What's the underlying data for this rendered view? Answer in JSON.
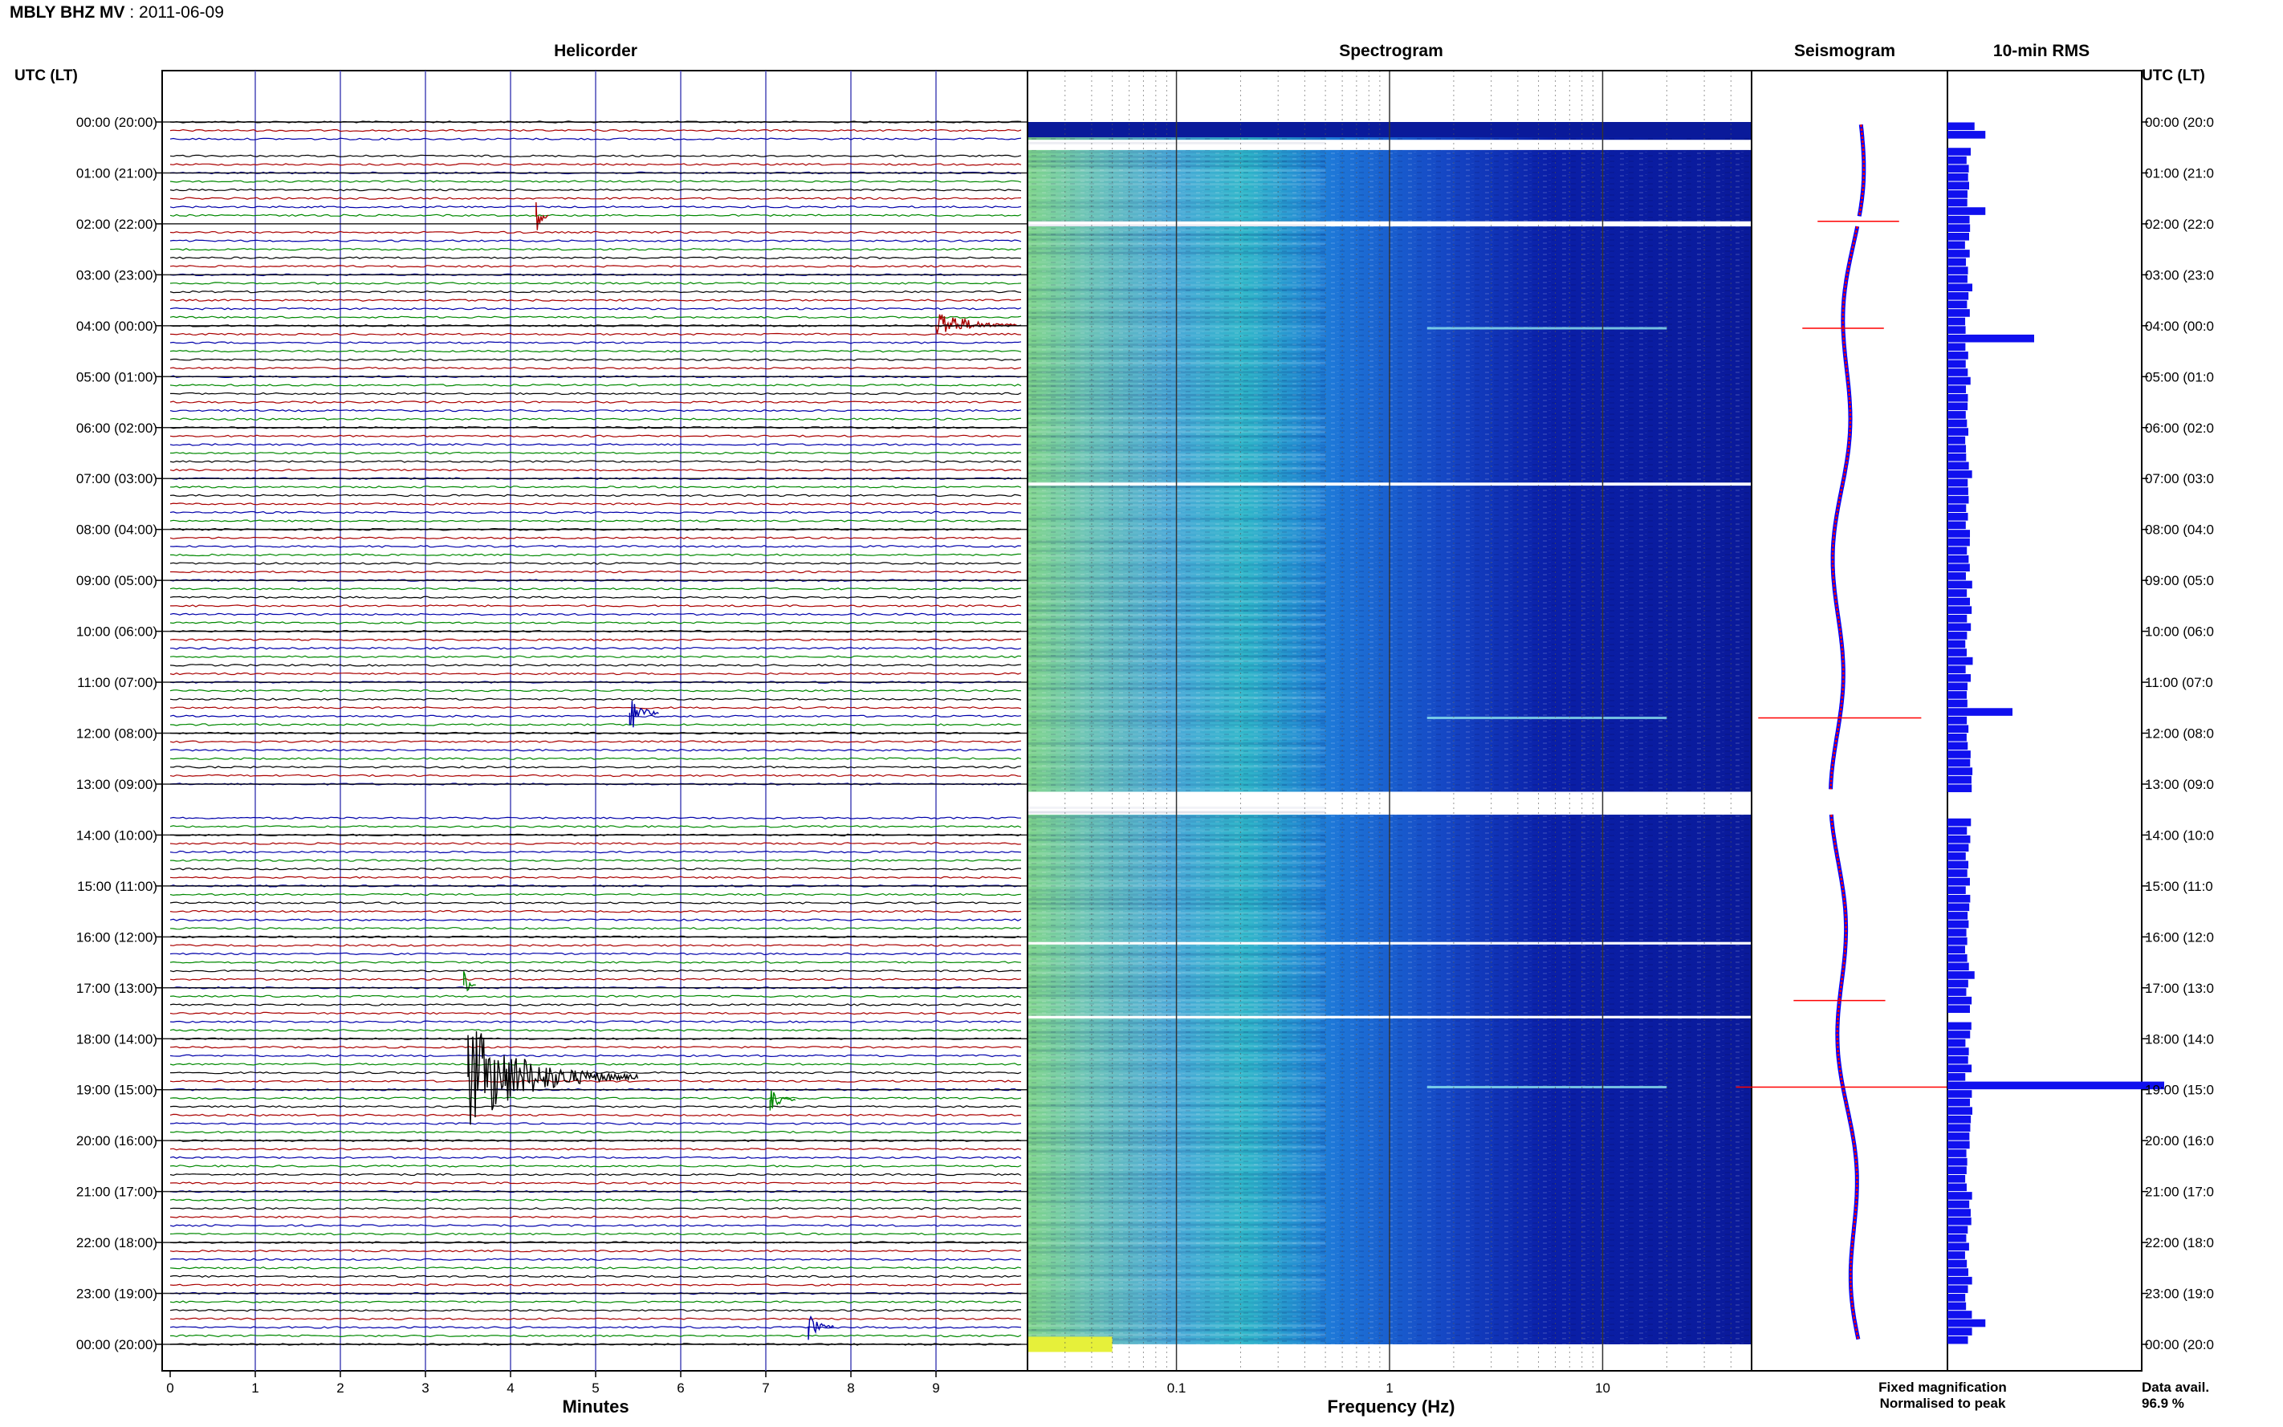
{
  "header": {
    "station": "MBLY BHZ MV",
    "date_sep": " : ",
    "date": "2011-06-09"
  },
  "panels": {
    "helicorder": "Helicorder",
    "spectrogram": "Spectrogram",
    "seismogram": "Seismogram",
    "rms": "10-min RMS"
  },
  "axes": {
    "left_axis_label": "UTC (LT)",
    "right_axis_label": "UTC (LT)",
    "minutes_label": "Minutes",
    "frequency_label": "Frequency (Hz)"
  },
  "legend": {
    "fixed": "Fixed magnification",
    "normalised": "Normalised to peak",
    "fixed_color": "#0000ff",
    "normalised_color": "#ff0000"
  },
  "availability": {
    "label": "Data avail.",
    "value": "96.9 %"
  },
  "chart_data": {
    "type": "helicorder",
    "hour_ticks": [
      "00:00 (20:00)",
      "01:00 (21:00)",
      "02:00 (22:00)",
      "03:00 (23:00)",
      "04:00 (00:00)",
      "05:00 (01:00)",
      "06:00 (02:00)",
      "07:00 (03:00)",
      "08:00 (04:00)",
      "09:00 (05:00)",
      "10:00 (06:00)",
      "11:00 (07:00)",
      "12:00 (08:00)",
      "13:00 (09:00)",
      "14:00 (10:00)",
      "15:00 (11:00)",
      "16:00 (12:00)",
      "17:00 (13:00)",
      "18:00 (14:00)",
      "19:00 (15:00)",
      "20:00 (16:00)",
      "21:00 (17:00)",
      "22:00 (18:00)",
      "23:00 (19:00)",
      "00:00 (20:00)"
    ],
    "right_hour_ticks": [
      "00:00 (20:0",
      "01:00 (21:0",
      "02:00 (22:0",
      "03:00 (23:0",
      "04:00 (00:0",
      "05:00 (01:0",
      "06:00 (02:0",
      "07:00 (03:0",
      "08:00 (04:0",
      "09:00 (05:0",
      "10:00 (06:0",
      "11:00 (07:0",
      "12:00 (08:0",
      "13:00 (09:0",
      "14:00 (10:0",
      "15:00 (11:0",
      "16:00 (12:0",
      "17:00 (13:0",
      "18:00 (14:0",
      "19:00 (15:0",
      "20:00 (16:0",
      "21:00 (17:0",
      "22:00 (18:0",
      "23:00 (19:0",
      "00:00 (20:0"
    ],
    "minute_ticks": [
      "0",
      "1",
      "2",
      "3",
      "4",
      "5",
      "6",
      "7",
      "8",
      "9"
    ],
    "xlim_minutes": [
      0,
      10
    ],
    "frequency_ticks": [
      {
        "value": 0.1,
        "label": "0.1"
      },
      {
        "value": 1,
        "label": "1"
      },
      {
        "value": 10,
        "label": "10"
      }
    ],
    "frequency_range_hz": [
      0.02,
      50
    ],
    "trace_colors": [
      "#000000",
      "#aa0000",
      "#0000aa",
      "#008800"
    ],
    "trace_line_minutes": 10,
    "events": [
      {
        "hour": 1.85,
        "minute": 4.3,
        "amplitude": 0.5,
        "color": "#aa0000",
        "duration": 0.15
      },
      {
        "hour": 3.98,
        "minute": 9.0,
        "amplitude": 0.35,
        "color": "#aa0000",
        "duration": 0.95
      },
      {
        "hour": 11.6,
        "minute": 5.4,
        "amplitude": 0.45,
        "color": "#0000aa",
        "duration": 0.35
      },
      {
        "hour": 16.95,
        "minute": 3.45,
        "amplitude": 0.3,
        "color": "#008800",
        "duration": 0.15
      },
      {
        "hour": 18.75,
        "minute": 3.5,
        "amplitude": 1.1,
        "color": "#000000",
        "duration": 2.0
      },
      {
        "hour": 19.2,
        "minute": 7.05,
        "amplitude": 0.25,
        "color": "#008800",
        "duration": 0.3
      },
      {
        "hour": 23.65,
        "minute": 7.5,
        "amplitude": 0.3,
        "color": "#0000aa",
        "duration": 0.3
      }
    ],
    "data_gaps_hours": [
      [
        0.35,
        0.55
      ],
      [
        1.95,
        2.05
      ],
      [
        7.08,
        7.14
      ],
      [
        13.15,
        13.6
      ],
      [
        16.1,
        16.15
      ],
      [
        17.55,
        17.6
      ]
    ],
    "rms_10min": {
      "hours": [
        0.1,
        0.2,
        1.2,
        1.7,
        2.2,
        4.2,
        11.6,
        13.5,
        16.8,
        18.95,
        23.6
      ],
      "values": [
        0.25,
        0.35,
        0.2,
        0.35,
        0.2,
        0.8,
        0.6,
        0.2,
        0.25,
        2.0,
        0.35
      ],
      "baseline": 0.18
    },
    "seismogram_peaks_hours": [
      1.95,
      4.05,
      11.7,
      17.25,
      18.95
    ],
    "seismogram_peak_widths": [
      0.8,
      0.8,
      1.6,
      0.9,
      2.1
    ]
  }
}
